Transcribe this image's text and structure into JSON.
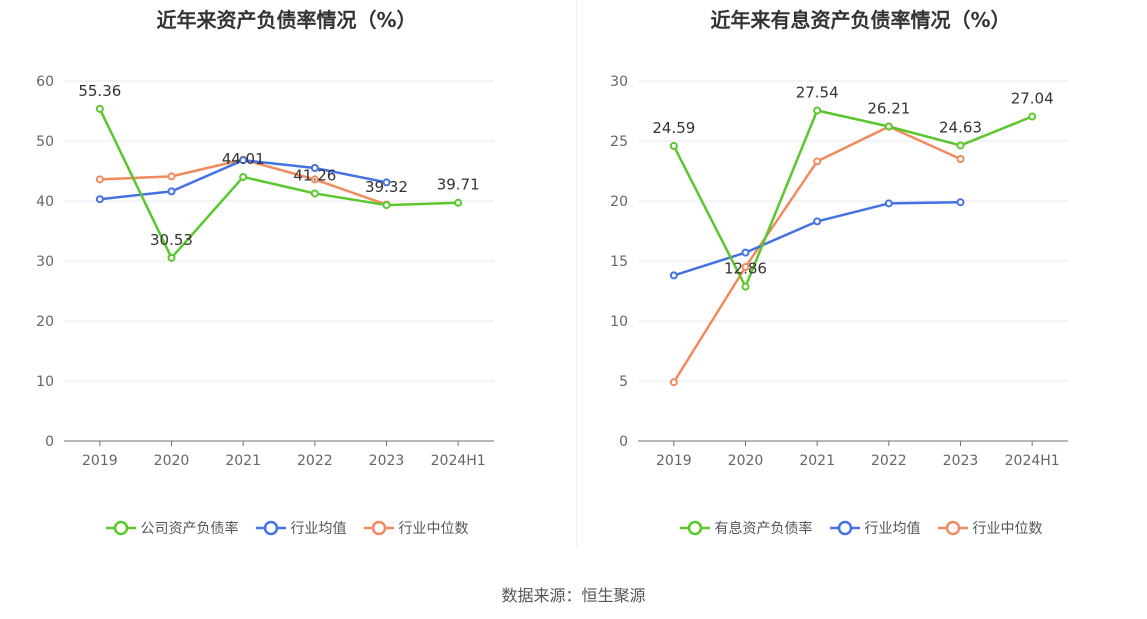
{
  "chart_data": [
    {
      "type": "line",
      "title": "近年来资产负债率情况（%）",
      "categories": [
        "2019",
        "2020",
        "2021",
        "2022",
        "2023",
        "2024H1"
      ],
      "ylim": [
        0,
        60
      ],
      "yticks": [
        0,
        10,
        20,
        30,
        40,
        50,
        60
      ],
      "series": [
        {
          "name": "公司资产负债率",
          "color": "#5ac72d",
          "values": [
            55.36,
            30.53,
            44.01,
            41.26,
            39.32,
            39.71
          ],
          "labels": [
            "55.36",
            "30.53",
            "44.01",
            "41.26",
            "39.32",
            "39.71"
          ]
        },
        {
          "name": "行业均值",
          "color": "#4472e3",
          "values": [
            40.3,
            41.6,
            46.8,
            45.5,
            43.1,
            null
          ]
        },
        {
          "name": "行业中位数",
          "color": "#f28a5f",
          "values": [
            43.6,
            44.1,
            46.9,
            43.6,
            39.4,
            null
          ]
        }
      ]
    },
    {
      "type": "line",
      "title": "近年来有息资产负债率情况（%）",
      "categories": [
        "2019",
        "2020",
        "2021",
        "2022",
        "2023",
        "2024H1"
      ],
      "ylim": [
        0,
        30
      ],
      "yticks": [
        0,
        5,
        10,
        15,
        20,
        25,
        30
      ],
      "series": [
        {
          "name": "有息资产负债率",
          "color": "#5ac72d",
          "values": [
            24.59,
            12.86,
            27.54,
            26.21,
            24.63,
            27.04
          ],
          "labels": [
            "24.59",
            "12.86",
            "27.54",
            "26.21",
            "24.63",
            "27.04"
          ]
        },
        {
          "name": "行业均值",
          "color": "#4472e3",
          "values": [
            13.8,
            15.7,
            18.3,
            19.8,
            19.9,
            null
          ]
        },
        {
          "name": "行业中位数",
          "color": "#f28a5f",
          "values": [
            4.9,
            14.5,
            23.3,
            26.2,
            23.5,
            null
          ]
        }
      ]
    }
  ],
  "source": "数据来源：恒生聚源"
}
